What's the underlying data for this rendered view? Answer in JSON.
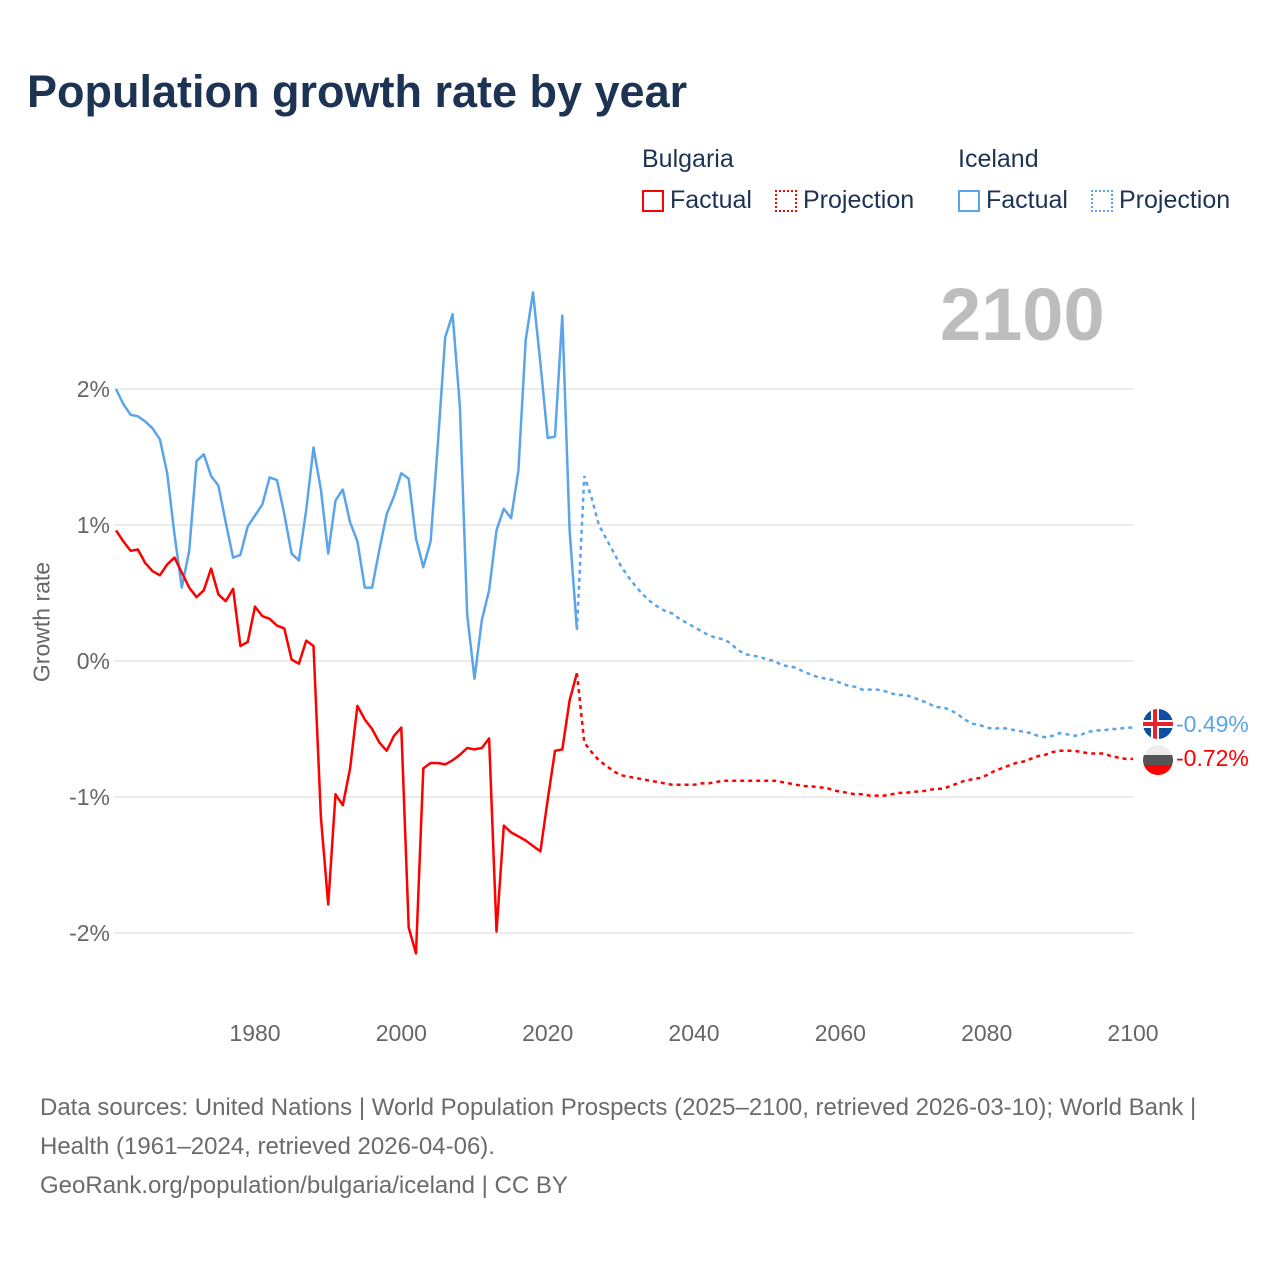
{
  "chart_data": {
    "type": "line",
    "title": "Population growth rate by year",
    "ylabel": "Growth rate",
    "xlabel": "",
    "xlim": [
      1961,
      2100
    ],
    "ylim": [
      -2.5,
      2.9
    ],
    "x_ticks": [
      1980,
      2000,
      2020,
      2040,
      2060,
      2080,
      2100
    ],
    "x_tick_labels": [
      "1980",
      "2000",
      "2020",
      "2040",
      "2060",
      "2080",
      "2100"
    ],
    "y_ticks": [
      2,
      1,
      0,
      -1,
      -2
    ],
    "y_tick_labels": [
      "2%",
      "1%",
      "0%",
      "-1%",
      "-2%"
    ],
    "grid": true,
    "legend_placement": "top-right",
    "current_year_label": "2100",
    "legend": {
      "groups": [
        {
          "name": "Bulgaria",
          "factual": "Factual",
          "projection": "Projection",
          "color": "#ff0000"
        },
        {
          "name": "Iceland",
          "factual": "Factual",
          "projection": "Projection",
          "color": "#5aa5ea"
        }
      ]
    },
    "series": [
      {
        "name": "Iceland",
        "color": "#5aa5ea",
        "end_label": "-0.49%",
        "factual": {
          "x_start": 1961,
          "values": [
            2.0,
            1.89,
            1.81,
            1.8,
            1.76,
            1.71,
            1.63,
            1.38,
            0.93,
            0.54,
            0.81,
            1.47,
            1.52,
            1.36,
            1.29,
            1.02,
            0.76,
            0.78,
            0.99,
            1.07,
            1.15,
            1.35,
            1.33,
            1.08,
            0.79,
            0.74,
            1.11,
            1.57,
            1.26,
            0.79,
            1.18,
            1.26,
            1.02,
            0.88,
            0.54,
            0.54,
            0.82,
            1.08,
            1.21,
            1.38,
            1.34,
            0.9,
            0.69,
            0.88,
            1.6,
            2.38,
            2.55,
            1.87,
            0.34,
            -0.13,
            0.3,
            0.52,
            0.96,
            1.12,
            1.05,
            1.4,
            2.36,
            2.71,
            2.19,
            1.64,
            1.65,
            2.54,
            0.96,
            0.23
          ]
        },
        "projection": {
          "x_start": 2024,
          "values": [
            0.23,
            1.36,
            1.2,
            1.0,
            0.9,
            0.8,
            0.7,
            0.62,
            0.55,
            0.49,
            0.44,
            0.4,
            0.37,
            0.35,
            0.31,
            0.28,
            0.25,
            0.22,
            0.19,
            0.17,
            0.16,
            0.13,
            0.08,
            0.05,
            0.04,
            0.03,
            0.01,
            0.0,
            -0.03,
            -0.04,
            -0.05,
            -0.08,
            -0.1,
            -0.12,
            -0.13,
            -0.14,
            -0.16,
            -0.18,
            -0.19,
            -0.21,
            -0.21,
            -0.21,
            -0.22,
            -0.24,
            -0.25,
            -0.25,
            -0.27,
            -0.29,
            -0.31,
            -0.34,
            -0.34,
            -0.36,
            -0.39,
            -0.43,
            -0.46,
            -0.47,
            -0.49,
            -0.5,
            -0.49,
            -0.5,
            -0.51,
            -0.52,
            -0.53,
            -0.55,
            -0.56,
            -0.55,
            -0.53,
            -0.54,
            -0.55,
            -0.54,
            -0.52,
            -0.51,
            -0.51,
            -0.5,
            -0.5,
            -0.49,
            -0.49
          ]
        }
      },
      {
        "name": "Bulgaria",
        "color": "#ff0000",
        "end_label": "-0.72%",
        "factual": {
          "x_start": 1961,
          "values": [
            0.96,
            0.88,
            0.81,
            0.82,
            0.72,
            0.66,
            0.63,
            0.71,
            0.76,
            0.65,
            0.54,
            0.47,
            0.52,
            0.68,
            0.49,
            0.44,
            0.53,
            0.11,
            0.14,
            0.4,
            0.33,
            0.31,
            0.26,
            0.24,
            0.01,
            -0.02,
            0.15,
            0.11,
            -1.15,
            -1.79,
            -0.98,
            -1.06,
            -0.79,
            -0.33,
            -0.43,
            -0.5,
            -0.6,
            -0.66,
            -0.55,
            -0.49,
            -1.96,
            -2.15,
            -0.79,
            -0.75,
            -0.75,
            -0.76,
            -0.73,
            -0.69,
            -0.64,
            -0.65,
            -0.64,
            -0.57,
            -1.99,
            -1.21,
            -1.26,
            -1.29,
            -1.32,
            -1.36,
            -1.4,
            -1.02,
            -0.66,
            -0.65,
            -0.29,
            -0.09
          ]
        },
        "projection": {
          "x_start": 2024,
          "values": [
            -0.09,
            -0.6,
            -0.67,
            -0.73,
            -0.77,
            -0.81,
            -0.84,
            -0.85,
            -0.86,
            -0.87,
            -0.88,
            -0.89,
            -0.9,
            -0.91,
            -0.91,
            -0.91,
            -0.91,
            -0.9,
            -0.9,
            -0.89,
            -0.88,
            -0.88,
            -0.88,
            -0.88,
            -0.88,
            -0.88,
            -0.88,
            -0.88,
            -0.89,
            -0.9,
            -0.91,
            -0.92,
            -0.92,
            -0.93,
            -0.93,
            -0.95,
            -0.96,
            -0.97,
            -0.98,
            -0.98,
            -0.99,
            -0.99,
            -0.99,
            -0.98,
            -0.97,
            -0.97,
            -0.96,
            -0.96,
            -0.95,
            -0.94,
            -0.94,
            -0.92,
            -0.9,
            -0.88,
            -0.87,
            -0.86,
            -0.84,
            -0.81,
            -0.79,
            -0.77,
            -0.75,
            -0.74,
            -0.72,
            -0.7,
            -0.69,
            -0.67,
            -0.66,
            -0.66,
            -0.66,
            -0.67,
            -0.68,
            -0.68,
            -0.68,
            -0.7,
            -0.71,
            -0.72,
            -0.72
          ]
        }
      }
    ]
  },
  "footer": {
    "sources": "Data sources: United Nations | World Population Prospects (2025–2100, retrieved 2026-03-10); World Bank | Health (1961–2024, retrieved 2026-04-06).",
    "credit": "GeoRank.org/population/bulgaria/iceland | CC BY"
  }
}
